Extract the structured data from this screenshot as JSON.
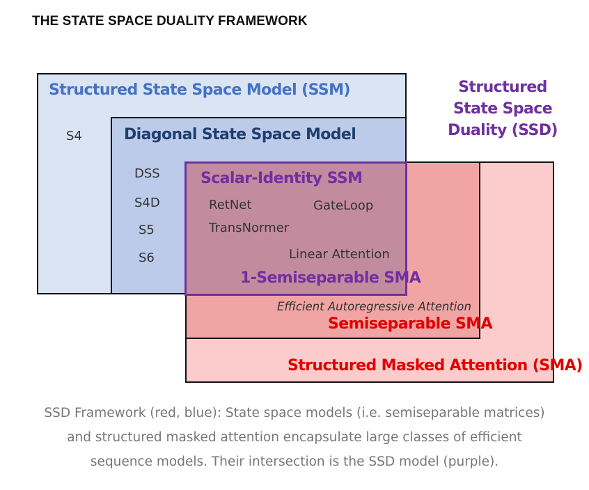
{
  "title": "THE STATE SPACE DUALITY FRAMEWORK",
  "colors": {
    "ssm_fill": "#dbe4f3",
    "dssm_fill": "#bccbe9",
    "sma_fill": "#fccccc",
    "semisep_fill": "#f1a4a4",
    "overlap_fill": "#c28c9e",
    "blue_text": "#4472c4",
    "navy_text": "#1f3f6e",
    "purple": "#7030a0",
    "red": "#e00000"
  },
  "diagram": {
    "ssm": {
      "label": "Structured State Space Model (SSM)",
      "models": [
        "S4"
      ]
    },
    "diagonal_ssm": {
      "label": "Diagonal State Space Model",
      "models": [
        "DSS",
        "S4D",
        "S5",
        "S6"
      ]
    },
    "scalar_identity_ssm": {
      "label": "Scalar-Identity SSM",
      "models": [
        "RetNet",
        "GateLoop",
        "TransNormer",
        "Linear Attention"
      ]
    },
    "one_semiseparable_sma": {
      "label": "1-Semiseparable SMA"
    },
    "semiseparable_sma": {
      "label": "Semiseparable SMA",
      "note": "Efficient Autoregressive Attention"
    },
    "sma": {
      "label": "Structured Masked Attention (SMA)"
    },
    "ssd": {
      "label_lines": [
        "Structured",
        "State Space",
        "Duality (SSD)"
      ]
    }
  },
  "caption_lines": [
    "SSD Framework (red, blue): State space models (i.e. semiseparable matrices)",
    "and structured masked attention encapsulate large classes of efficient",
    "sequence models. Their intersection is the SSD model (purple)."
  ]
}
